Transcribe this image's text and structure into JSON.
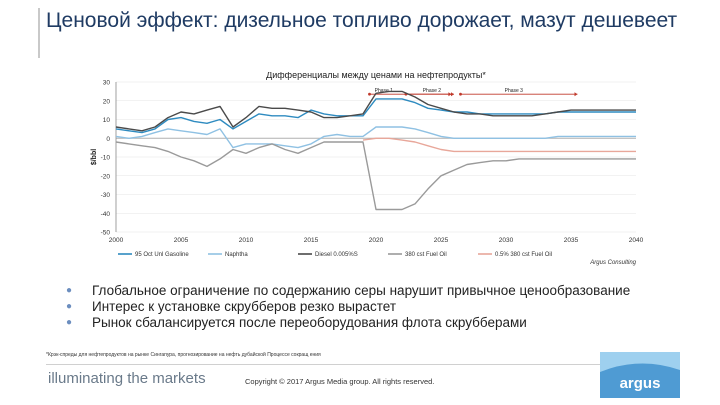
{
  "slide": {
    "title": "Ценовой эффект: дизельное топливо дорожает, мазут дешевеет",
    "bullets": [
      "Глобальное ограничение по содержанию серы нарушит привычное ценообразование",
      "Интерес к установке скрубберов резко вырастет",
      "Рынок сбалансируется после переоборудования флота скрубберами"
    ],
    "footnote": "*Крэк-спреды для нефтепродуктов на рынке Сингапура, прогнозирование на нефть дубайской Процессе сокращ ения",
    "tagline": "illuminating the markets",
    "copyright": "Copyright © 2017 Argus Media group. All rights reserved.",
    "logo_text": "argus",
    "colors": {
      "title": "#1f3b63",
      "logo_bg": "#4f9bd3",
      "phase_arrow": "#c0392b"
    }
  },
  "chart_data": {
    "type": "line",
    "title": "Дифференциалы между ценами на нефтепродукты*",
    "ylabel": "$/bbl",
    "source": "Argus Consulting",
    "xlim": [
      2000,
      2040
    ],
    "ylim": [
      -50,
      30
    ],
    "xticks": [
      "2000",
      "2005",
      "2010",
      "2015",
      "2020",
      "2025",
      "2030",
      "2035",
      "2040"
    ],
    "yticks": [
      "30",
      "20",
      "10",
      "0",
      "-10",
      "-20",
      "-30",
      "-40",
      "-50"
    ],
    "phases": [
      {
        "label": "Phase 1",
        "from": 2019.5,
        "to": 2025.8
      },
      {
        "label": "Phase 2",
        "from": 2022.3,
        "to": 2026.0
      },
      {
        "label": "Phase 3",
        "from": 2026.5,
        "to": 2035.5
      }
    ],
    "series": [
      {
        "name": "95 Oct Unl Gasoline",
        "color": "#2e8bc0",
        "x": [
          2000,
          2001,
          2002,
          2003,
          2004,
          2005,
          2006,
          2007,
          2008,
          2009,
          2010,
          2011,
          2012,
          2013,
          2014,
          2015,
          2016,
          2017,
          2018,
          2019,
          2020,
          2021,
          2022,
          2023,
          2024,
          2025,
          2026,
          2027,
          2028,
          2029,
          2030,
          2031,
          2032,
          2033,
          2034,
          2035,
          2036,
          2037,
          2038,
          2039,
          2040
        ],
        "y": [
          5,
          4,
          3,
          5,
          10,
          11,
          9,
          8,
          10,
          5,
          9,
          13,
          12,
          12,
          11,
          15,
          13,
          12,
          12,
          12,
          21,
          21,
          21,
          19,
          16,
          15,
          14,
          14,
          13,
          13,
          13,
          13,
          13,
          13,
          14,
          14,
          14,
          14,
          14,
          14,
          14
        ]
      },
      {
        "name": "Naphtha",
        "color": "#8fc1e3",
        "x": [
          2000,
          2001,
          2002,
          2003,
          2004,
          2005,
          2006,
          2007,
          2008,
          2009,
          2010,
          2011,
          2012,
          2013,
          2014,
          2015,
          2016,
          2017,
          2018,
          2019,
          2020,
          2021,
          2022,
          2023,
          2024,
          2025,
          2026,
          2027,
          2028,
          2029,
          2030,
          2031,
          2032,
          2033,
          2034,
          2035,
          2036,
          2037,
          2038,
          2039,
          2040
        ],
        "y": [
          1,
          0,
          1,
          3,
          5,
          4,
          3,
          2,
          5,
          -5,
          -3,
          -3,
          -3,
          -4,
          -5,
          -3,
          1,
          2,
          1,
          1,
          6,
          6,
          6,
          5,
          3,
          1,
          0,
          0,
          0,
          0,
          0,
          0,
          0,
          0,
          1,
          1,
          1,
          1,
          1,
          1,
          1
        ]
      },
      {
        "name": "Diesel 0.005%S",
        "color": "#4a4a4a",
        "x": [
          2000,
          2001,
          2002,
          2003,
          2004,
          2005,
          2006,
          2007,
          2008,
          2009,
          2010,
          2011,
          2012,
          2013,
          2014,
          2015,
          2016,
          2017,
          2018,
          2019,
          2020,
          2021,
          2022,
          2023,
          2024,
          2025,
          2026,
          2027,
          2028,
          2029,
          2030,
          2031,
          2032,
          2033,
          2034,
          2035,
          2036,
          2037,
          2038,
          2039,
          2040
        ],
        "y": [
          6,
          5,
          4,
          6,
          11,
          14,
          13,
          15,
          17,
          6,
          11,
          17,
          16,
          16,
          15,
          14,
          11,
          11,
          12,
          13,
          24,
          25,
          25,
          22,
          18,
          16,
          14,
          13,
          13,
          12,
          12,
          12,
          12,
          13,
          14,
          15,
          15,
          15,
          15,
          15,
          15
        ]
      },
      {
        "name": "380 cst Fuel Oil",
        "color": "#9a9a9a",
        "x": [
          2000,
          2001,
          2002,
          2003,
          2004,
          2005,
          2006,
          2007,
          2008,
          2009,
          2010,
          2011,
          2012,
          2013,
          2014,
          2015,
          2016,
          2017,
          2018,
          2019,
          2020,
          2021,
          2022,
          2023,
          2024,
          2025,
          2026,
          2027,
          2028,
          2029,
          2030,
          2031,
          2032,
          2033,
          2034,
          2035,
          2036,
          2037,
          2038,
          2039,
          2040
        ],
        "y": [
          -2,
          -3,
          -4,
          -5,
          -7,
          -10,
          -12,
          -15,
          -11,
          -6,
          -8,
          -5,
          -3,
          -6,
          -8,
          -5,
          -2,
          -2,
          -2,
          -2,
          -38,
          -38,
          -38,
          -35,
          -27,
          -20,
          -17,
          -14,
          -13,
          -12,
          -12,
          -11,
          -11,
          -11,
          -11,
          -11,
          -11,
          -11,
          -11,
          -11,
          -11
        ]
      },
      {
        "name": "0.5% 380 cst Fuel Oil",
        "color": "#e8a79a",
        "x": [
          2019,
          2020,
          2021,
          2022,
          2023,
          2024,
          2025,
          2026,
          2027,
          2028,
          2029,
          2030,
          2031,
          2032,
          2033,
          2034,
          2035,
          2036,
          2037,
          2038,
          2039,
          2040
        ],
        "y": [
          -1,
          0,
          0,
          -1,
          -2,
          -4,
          -6,
          -7,
          -7,
          -7,
          -7,
          -7,
          -7,
          -7,
          -7,
          -7,
          -7,
          -7,
          -7,
          -7,
          -7,
          -7
        ]
      }
    ]
  }
}
